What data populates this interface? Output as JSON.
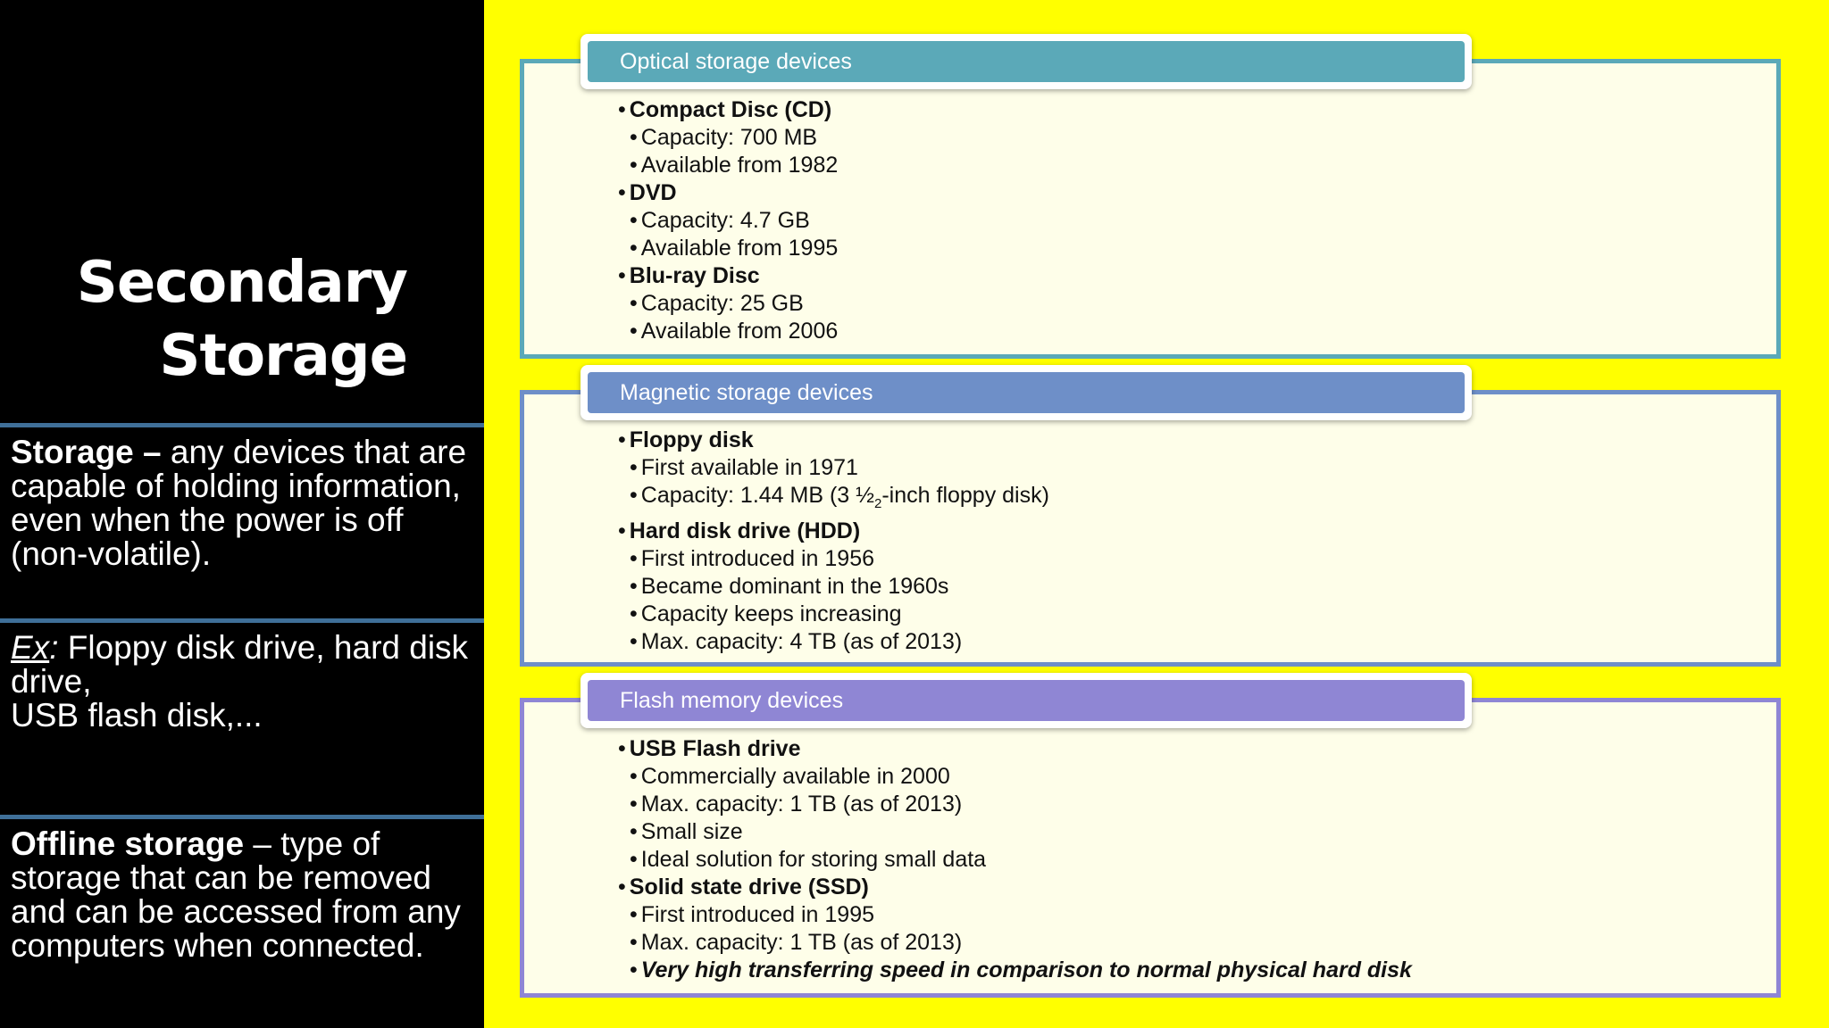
{
  "slide_title": {
    "line1": "Secondary",
    "line2": "Storage"
  },
  "definitions": {
    "storage": {
      "term": "Storage –",
      "text": " any devices that are capable of holding information, even when the power is off (non-volatile)."
    },
    "example": {
      "term": "Ex",
      "colon": ":",
      "text": " Floppy disk drive, hard disk drive,",
      "line2": "USB flash disk,..."
    },
    "offline": {
      "term": "Offline storage",
      "text": " – type of storage that can be removed and can be accessed from any computers when connected."
    }
  },
  "colors": {
    "optical": "#5ba9b8",
    "magnetic": "#6e8fc8",
    "flash": "#8f86d4",
    "background": "#ffff00"
  },
  "optical": {
    "header": "Optical storage devices",
    "items": [
      {
        "level": 1,
        "text": "Compact Disc (CD)"
      },
      {
        "level": 2,
        "text": "Capacity: 700 MB"
      },
      {
        "level": 2,
        "text": "Available from 1982"
      },
      {
        "level": 1,
        "text": "DVD"
      },
      {
        "level": 2,
        "text": "Capacity: 4.7 GB"
      },
      {
        "level": 2,
        "text": "Available from 1995"
      },
      {
        "level": 1,
        "text": "Blu-ray Disc"
      },
      {
        "level": 2,
        "text": "Capacity: 25 GB"
      },
      {
        "level": 2,
        "text": "Available from 2006"
      }
    ]
  },
  "magnetic": {
    "header": "Magnetic storage devices",
    "items": [
      {
        "level": 1,
        "text": "Floppy disk"
      },
      {
        "level": 2,
        "text": "First available in 1971"
      },
      {
        "level": 2,
        "text": "Capacity: 1.44 MB (3 ",
        "frac_num": "½",
        "text_after": "-inch floppy disk)",
        "frac_sub": "2"
      },
      {
        "level": 1,
        "text": "Hard disk drive (HDD)"
      },
      {
        "level": 2,
        "text": "First introduced in 1956"
      },
      {
        "level": 2,
        "text": "Became dominant in the 1960s"
      },
      {
        "level": 2,
        "text": "Capacity keeps increasing"
      },
      {
        "level": 2,
        "text": "Max. capacity: 4 TB (as of 2013)"
      }
    ]
  },
  "flash": {
    "header": "Flash memory devices",
    "items": [
      {
        "level": 1,
        "text": "USB Flash drive"
      },
      {
        "level": 2,
        "text": "Commercially available in 2000"
      },
      {
        "level": 2,
        "text": "Max. capacity: 1 TB (as of 2013)"
      },
      {
        "level": 2,
        "text": "Small size"
      },
      {
        "level": 2,
        "text": "Ideal solution for storing small data"
      },
      {
        "level": 1,
        "text": "Solid state drive (SSD)"
      },
      {
        "level": 2,
        "text": "First introduced in 1995"
      },
      {
        "level": 2,
        "text": "Max. capacity: 1 TB (as of 2013)"
      },
      {
        "level": 2,
        "text": "Very high transferring speed in comparison to normal physical hard disk",
        "emphasis": true
      }
    ]
  }
}
